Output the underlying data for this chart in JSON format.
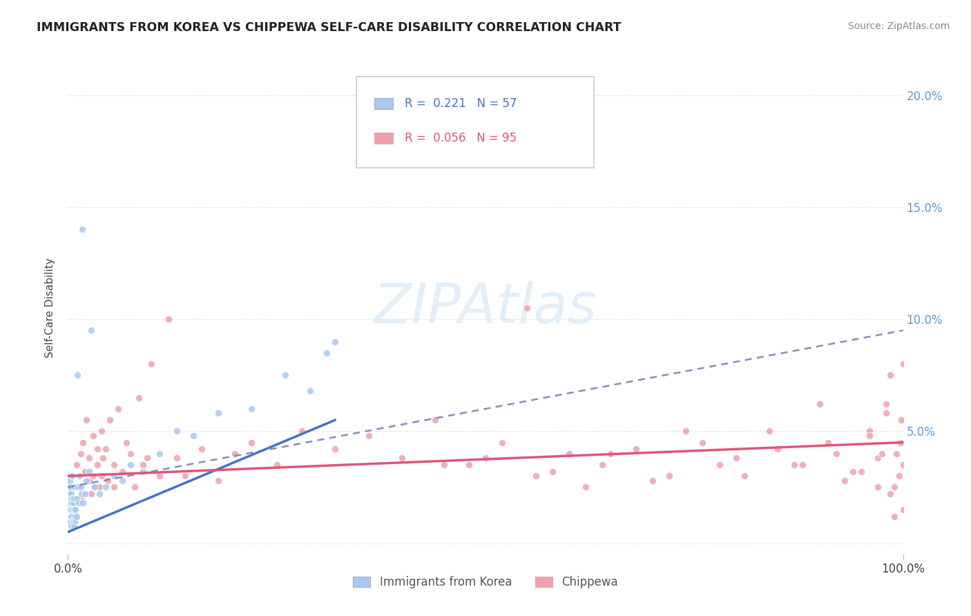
{
  "title": "IMMIGRANTS FROM KOREA VS CHIPPEWA SELF-CARE DISABILITY CORRELATION CHART",
  "source": "Source: ZipAtlas.com",
  "ylabel": "Self-Care Disability",
  "y_ticks": [
    0.0,
    0.05,
    0.1,
    0.15,
    0.2
  ],
  "y_tick_labels": [
    "",
    "5.0%",
    "10.0%",
    "15.0%",
    "20.0%"
  ],
  "x_lim": [
    0,
    1.0
  ],
  "y_lim": [
    -0.005,
    0.215
  ],
  "korea_color": "#a8c8f0",
  "chippewa_color": "#f0a0b0",
  "korea_line_color": "#4472c4",
  "chippewa_line_color": "#e05575",
  "chippewa_dash_color": "#8888bb",
  "korea_R": 0.221,
  "korea_N": 57,
  "chippewa_R": 0.056,
  "chippewa_N": 95,
  "watermark": "ZIPAtlas",
  "legend_label_korea": "Immigrants from Korea",
  "legend_label_chippewa": "Chippewa",
  "korea_scatter_x": [
    0.001,
    0.001,
    0.001,
    0.002,
    0.002,
    0.002,
    0.002,
    0.003,
    0.003,
    0.003,
    0.003,
    0.004,
    0.004,
    0.004,
    0.005,
    0.005,
    0.005,
    0.005,
    0.006,
    0.006,
    0.007,
    0.007,
    0.007,
    0.008,
    0.008,
    0.009,
    0.009,
    0.01,
    0.01,
    0.011,
    0.012,
    0.013,
    0.014,
    0.015,
    0.016,
    0.017,
    0.018,
    0.02,
    0.022,
    0.025,
    0.028,
    0.032,
    0.038,
    0.045,
    0.055,
    0.065,
    0.075,
    0.09,
    0.11,
    0.13,
    0.15,
    0.18,
    0.22,
    0.26,
    0.29,
    0.31,
    0.32
  ],
  "korea_scatter_y": [
    0.03,
    0.025,
    0.018,
    0.028,
    0.022,
    0.015,
    0.01,
    0.02,
    0.025,
    0.015,
    0.012,
    0.018,
    0.022,
    0.008,
    0.015,
    0.02,
    0.012,
    0.03,
    0.01,
    0.018,
    0.015,
    0.02,
    0.008,
    0.012,
    0.025,
    0.015,
    0.01,
    0.02,
    0.012,
    0.075,
    0.025,
    0.018,
    0.03,
    0.025,
    0.022,
    0.14,
    0.018,
    0.022,
    0.028,
    0.032,
    0.095,
    0.025,
    0.022,
    0.025,
    0.03,
    0.028,
    0.035,
    0.032,
    0.04,
    0.05,
    0.048,
    0.058,
    0.06,
    0.075,
    0.068,
    0.085,
    0.09
  ],
  "chippewa_scatter_x": [
    0.005,
    0.01,
    0.012,
    0.015,
    0.015,
    0.018,
    0.02,
    0.022,
    0.025,
    0.025,
    0.028,
    0.03,
    0.03,
    0.032,
    0.035,
    0.035,
    0.038,
    0.04,
    0.04,
    0.042,
    0.045,
    0.048,
    0.05,
    0.055,
    0.055,
    0.06,
    0.065,
    0.07,
    0.075,
    0.08,
    0.085,
    0.09,
    0.095,
    0.1,
    0.11,
    0.12,
    0.13,
    0.14,
    0.16,
    0.18,
    0.2,
    0.22,
    0.25,
    0.28,
    0.32,
    0.36,
    0.4,
    0.44,
    0.48,
    0.52,
    0.56,
    0.6,
    0.64,
    0.68,
    0.72,
    0.76,
    0.8,
    0.84,
    0.87,
    0.9,
    0.92,
    0.94,
    0.96,
    0.97,
    0.98,
    0.985,
    0.99,
    0.992,
    0.995,
    0.997,
    0.998,
    1.0,
    1.0,
    1.0,
    0.45,
    0.5,
    0.55,
    0.58,
    0.62,
    0.65,
    0.7,
    0.74,
    0.78,
    0.81,
    0.85,
    0.88,
    0.91,
    0.93,
    0.95,
    0.96,
    0.97,
    0.975,
    0.98,
    0.985,
    0.99
  ],
  "chippewa_scatter_y": [
    0.03,
    0.035,
    0.025,
    0.04,
    0.02,
    0.045,
    0.032,
    0.055,
    0.028,
    0.038,
    0.022,
    0.048,
    0.03,
    0.025,
    0.042,
    0.035,
    0.025,
    0.05,
    0.03,
    0.038,
    0.042,
    0.028,
    0.055,
    0.035,
    0.025,
    0.06,
    0.032,
    0.045,
    0.04,
    0.025,
    0.065,
    0.035,
    0.038,
    0.08,
    0.03,
    0.1,
    0.038,
    0.03,
    0.042,
    0.028,
    0.04,
    0.045,
    0.035,
    0.05,
    0.042,
    0.048,
    0.038,
    0.055,
    0.035,
    0.045,
    0.03,
    0.04,
    0.035,
    0.042,
    0.03,
    0.045,
    0.038,
    0.05,
    0.035,
    0.062,
    0.04,
    0.032,
    0.05,
    0.038,
    0.062,
    0.075,
    0.025,
    0.04,
    0.03,
    0.045,
    0.055,
    0.08,
    0.035,
    0.015,
    0.035,
    0.038,
    0.105,
    0.032,
    0.025,
    0.04,
    0.028,
    0.05,
    0.035,
    0.03,
    0.042,
    0.035,
    0.045,
    0.028,
    0.032,
    0.048,
    0.025,
    0.04,
    0.058,
    0.022,
    0.012
  ]
}
